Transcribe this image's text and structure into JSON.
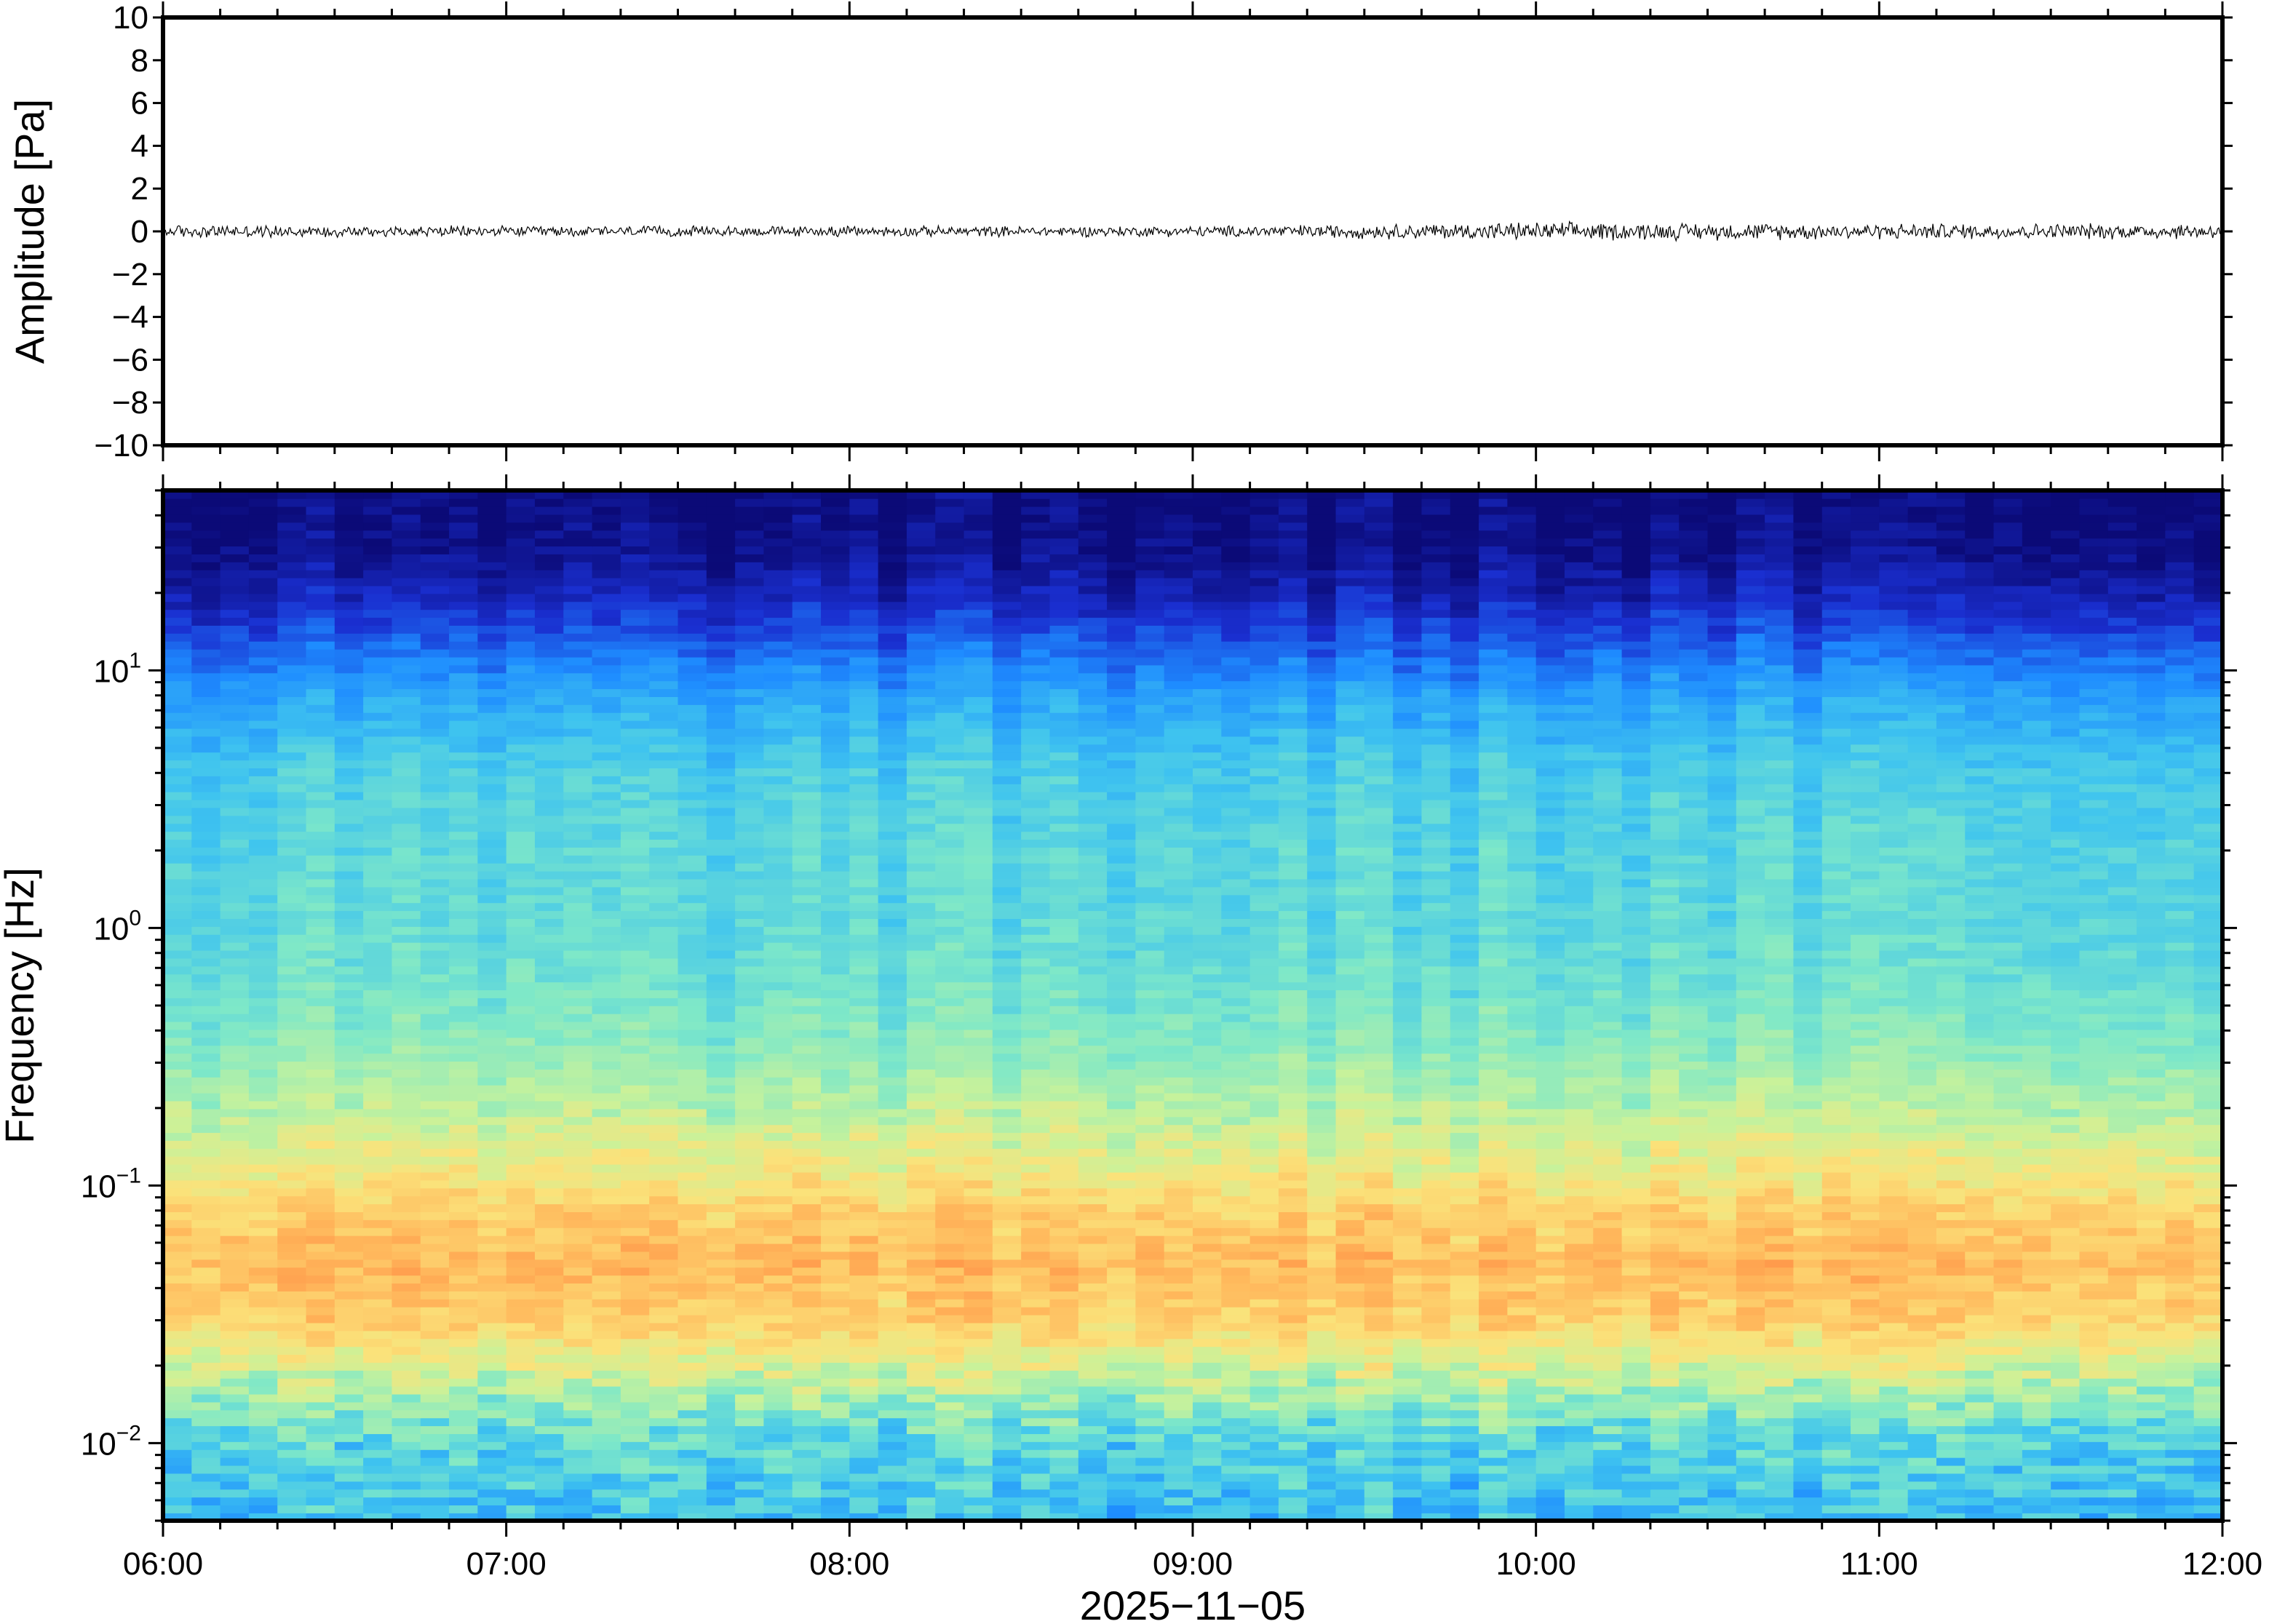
{
  "chart_data": [
    {
      "type": "line",
      "panel": "waveform",
      "ylabel": "Amplitude [Pa]",
      "ylim": [
        -10,
        10
      ],
      "yticks": [
        10,
        8,
        6,
        4,
        2,
        0,
        -2,
        -4,
        -6,
        -8,
        -10
      ],
      "ytick_labels": [
        "10",
        "8",
        "6",
        "4",
        "2",
        "0",
        "−2",
        "−4",
        "−6",
        "−8",
        "−10"
      ],
      "x_range": [
        "06:00",
        "12:00"
      ],
      "series": [
        {
          "color": "#000000",
          "envelope_by_hour": {
            "x": [
              "06:00",
              "07:00",
              "08:00",
              "09:00",
              "10:00",
              "11:00",
              "12:00"
            ],
            "amplitude": [
              0.25,
              0.2,
              0.2,
              0.2,
              0.35,
              0.3,
              0.3
            ]
          }
        }
      ],
      "grid": false
    },
    {
      "type": "heatmap",
      "panel": "spectrogram",
      "ylabel": "Frequency [Hz]",
      "y_scale": "log",
      "ylim": [
        0.005,
        50
      ],
      "yticks": [
        10,
        1,
        0.1,
        0.01
      ],
      "ytick_labels": [
        {
          "base": "10",
          "exp": "1"
        },
        {
          "base": "10",
          "exp": "0"
        },
        {
          "base": "10",
          "exp": "−1"
        },
        {
          "base": "10",
          "exp": "−2"
        }
      ],
      "xlabel": "2025−11−05",
      "xticks": [
        "06:00",
        "07:00",
        "08:00",
        "09:00",
        "10:00",
        "11:00",
        "12:00"
      ],
      "colormap": [
        "#0b0a77",
        "#1a2fd0",
        "#1e8cff",
        "#3fc4ef",
        "#7ee8c8",
        "#c9f29a",
        "#fbe27a",
        "#ffb85c",
        "#ff8a42"
      ],
      "frequency_profile": {
        "freq_hz": [
          0.005,
          0.01,
          0.015,
          0.02,
          0.03,
          0.05,
          0.08,
          0.12,
          0.2,
          0.35,
          0.6,
          1,
          2,
          4,
          8,
          12,
          20,
          30,
          50
        ],
        "level": [
          0.36,
          0.42,
          0.55,
          0.66,
          0.8,
          0.86,
          0.8,
          0.7,
          0.6,
          0.52,
          0.47,
          0.44,
          0.43,
          0.4,
          0.3,
          0.2,
          0.08,
          0.02,
          0.0
        ]
      },
      "legend": "none",
      "grid": false
    }
  ]
}
